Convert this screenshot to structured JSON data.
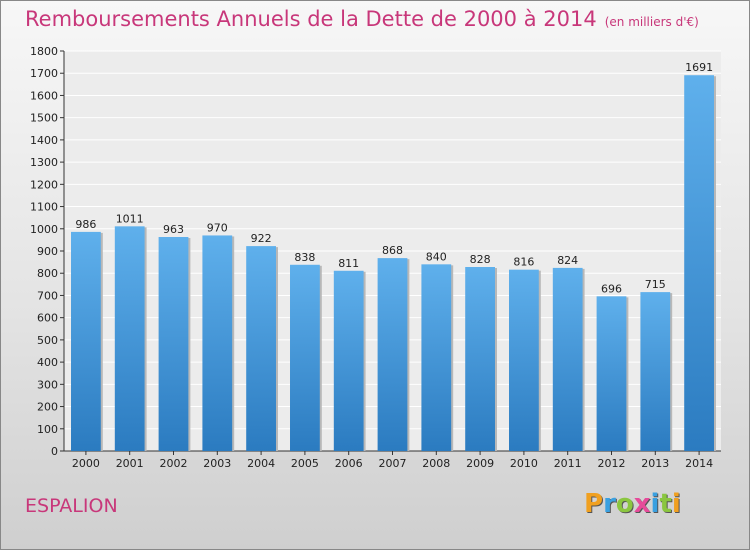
{
  "chart_data": {
    "type": "bar",
    "title": "Remboursements Annuels de la Dette de 2000 à 2014",
    "subtitle": "(en milliers d'€)",
    "xlabel": "",
    "ylabel": "",
    "ylim": [
      0,
      1800
    ],
    "ytick_step": 100,
    "grid": true,
    "categories": [
      "2000",
      "2001",
      "2002",
      "2003",
      "2004",
      "2005",
      "2006",
      "2007",
      "2008",
      "2009",
      "2010",
      "2011",
      "2012",
      "2013",
      "2014"
    ],
    "values": [
      986,
      1011,
      963,
      970,
      922,
      838,
      811,
      868,
      840,
      828,
      816,
      824,
      696,
      715,
      1691
    ],
    "bar_color": "#5aa9e6",
    "bar_color_dark": "#2f7fc4"
  },
  "footer": {
    "commune": "ESPALION",
    "logo": "Proxiti",
    "logo_colors": [
      "#f0a020",
      "#3aa0e0",
      "#8bc640",
      "#e64b9a",
      "#3aa0e0",
      "#8bc640",
      "#f0a020"
    ]
  },
  "colors": {
    "title": "#c8377a"
  }
}
